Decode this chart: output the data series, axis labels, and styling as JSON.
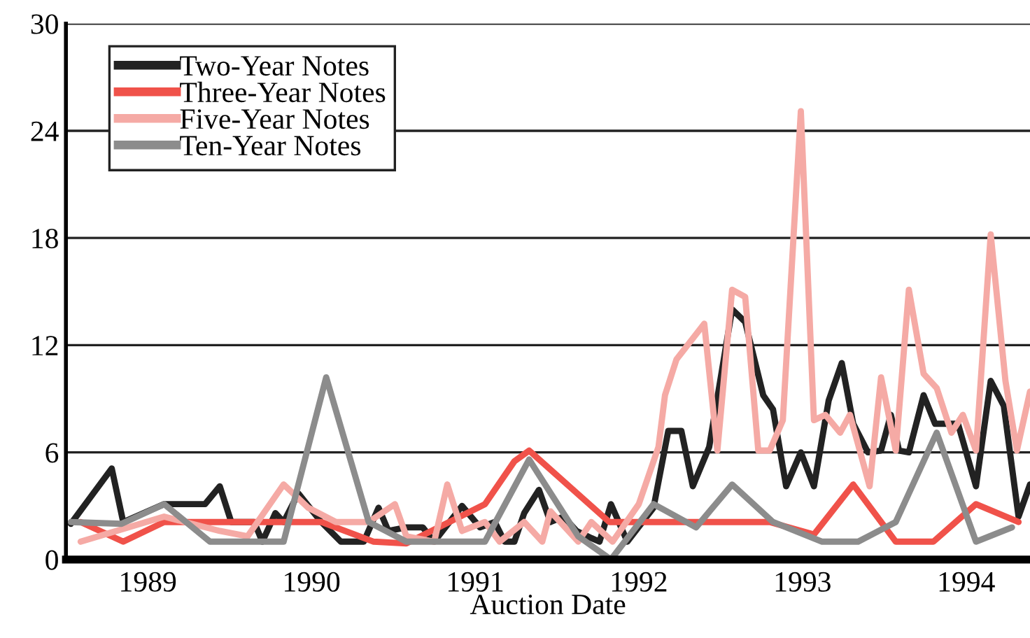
{
  "chart_data": {
    "type": "line",
    "xlabel": "Auction Date",
    "xlim": [
      1989,
      1994.89
    ],
    "ylim": [
      0,
      30
    ],
    "yticks": [
      0,
      6,
      12,
      18,
      24,
      30
    ],
    "xticks": [
      {
        "value": 1989.5,
        "label": "1989"
      },
      {
        "value": 1990.5,
        "label": "1990"
      },
      {
        "value": 1991.5,
        "label": "1991"
      },
      {
        "value": 1992.5,
        "label": "1992"
      },
      {
        "value": 1993.5,
        "label": "1993"
      },
      {
        "value": 1994.5,
        "label": "1994"
      }
    ],
    "grid": "y",
    "legend": "top left",
    "line_style": "solid",
    "series": [
      {
        "name": "Two-Year Notes",
        "color": "#222222",
        "x": [
          1989.03,
          1989.28,
          1989.35,
          1989.6,
          1989.85,
          1989.94,
          1990.01,
          1990.15,
          1990.2,
          1990.28,
          1990.33,
          1990.42,
          1990.56,
          1990.68,
          1990.82,
          1990.91,
          1990.97,
          1991.08,
          1991.18,
          1991.25,
          1991.42,
          1991.53,
          1991.62,
          1991.68,
          1991.74,
          1991.8,
          1991.89,
          1991.96,
          1992.04,
          1992.12,
          1992.21,
          1992.26,
          1992.33,
          1992.43,
          1992.59,
          1992.68,
          1992.76,
          1992.83,
          1992.93,
          1993.07,
          1993.15,
          1993.26,
          1993.32,
          1993.4,
          1993.49,
          1993.57,
          1993.66,
          1993.74,
          1993.81,
          1993.9,
          1993.98,
          1994.04,
          1994.09,
          1994.15,
          1994.24,
          1994.31,
          1994.45,
          1994.56,
          1994.65,
          1994.73,
          1994.82,
          1994.89
        ],
        "values": [
          2,
          5.1,
          2.1,
          3.1,
          3.1,
          4.1,
          2.1,
          2.1,
          1,
          2.6,
          2.1,
          3.7,
          2.1,
          1,
          1,
          2.9,
          1.6,
          1.8,
          1.8,
          1,
          3,
          1.8,
          2.1,
          1,
          1,
          2.6,
          3.9,
          2.1,
          2.4,
          1.6,
          1.2,
          1,
          3.1,
          1,
          2.9,
          7.2,
          7.2,
          4.1,
          6.3,
          14,
          13.3,
          9.2,
          8.4,
          4.1,
          6,
          4.1,
          8.9,
          11,
          7.6,
          6,
          6.1,
          8.1,
          6.1,
          6,
          9.2,
          7.6,
          7.6,
          4.1,
          10,
          8.6,
          2.4,
          4.2
        ]
      },
      {
        "name": "Three-Year Notes",
        "color": "#f0524a",
        "x": [
          1989.09,
          1989.35,
          1989.6,
          1990.56,
          1990.88,
          1991.08,
          1991.56,
          1991.74,
          1991.83,
          1992.32,
          1993.3,
          1993.57,
          1993.81,
          1994.07,
          1994.3,
          1994.56,
          1994.82
        ],
        "values": [
          2.1,
          1,
          2.1,
          2.1,
          1,
          0.9,
          3.1,
          5.5,
          6.1,
          2.1,
          2.1,
          1.4,
          4.2,
          1,
          1,
          3.1,
          2.1
        ]
      },
      {
        "name": "Five-Year Notes",
        "color": "#f5aaa5",
        "x": [
          1989.09,
          1989.6,
          1989.94,
          1990.11,
          1990.33,
          1990.48,
          1990.65,
          1990.85,
          1991.01,
          1991.08,
          1991.25,
          1991.33,
          1991.42,
          1991.56,
          1991.65,
          1991.8,
          1991.91,
          1991.96,
          1992.13,
          1992.21,
          1992.34,
          1992.5,
          1992.62,
          1992.66,
          1992.73,
          1992.9,
          1992.98,
          1993.07,
          1993.15,
          1993.23,
          1993.3,
          1993.38,
          1993.49,
          1993.57,
          1993.64,
          1993.73,
          1993.79,
          1993.91,
          1993.98,
          1994.07,
          1994.15,
          1994.24,
          1994.32,
          1994.41,
          1994.48,
          1994.56,
          1994.65,
          1994.74,
          1994.81,
          1994.89
        ],
        "values": [
          1,
          2.4,
          1.6,
          1.3,
          4.2,
          2.9,
          2.1,
          2.1,
          3.1,
          1.3,
          1,
          4.2,
          1.6,
          2.1,
          1,
          2.1,
          1,
          2.7,
          1,
          2.1,
          1,
          3.1,
          6.3,
          9.2,
          11.2,
          13.2,
          6.1,
          15.1,
          14.7,
          6.1,
          6.1,
          7.8,
          25.1,
          7.8,
          8.1,
          7.1,
          8.1,
          4.1,
          10.2,
          6.1,
          15.1,
          10.4,
          9.6,
          7.1,
          8.1,
          6.1,
          18.2,
          10,
          6.1,
          9.4
        ]
      },
      {
        "name": "Ten-Year Notes",
        "color": "#8c8c8c",
        "x": [
          1989.03,
          1989.34,
          1989.6,
          1989.88,
          1990.33,
          1990.59,
          1990.85,
          1991.08,
          1991.56,
          1991.83,
          1992.13,
          1992.33,
          1992.59,
          1992.85,
          1993.07,
          1993.32,
          1993.62,
          1993.84,
          1994.07,
          1994.32,
          1994.56,
          1994.78
        ],
        "values": [
          2.1,
          2,
          3.1,
          1,
          1,
          10.2,
          2.1,
          1,
          1,
          5.6,
          1.3,
          0,
          3.1,
          1.8,
          4.2,
          2.1,
          1,
          1,
          2.1,
          7.1,
          1,
          1.8
        ]
      }
    ]
  }
}
